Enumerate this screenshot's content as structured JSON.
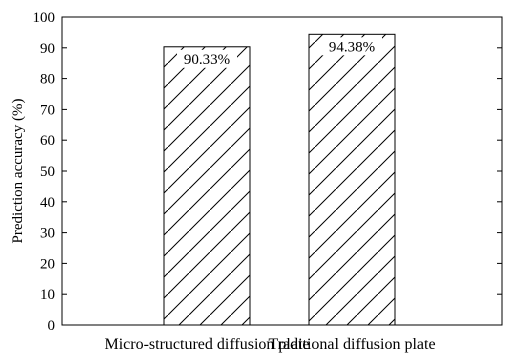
{
  "chart_data": {
    "type": "bar",
    "categories": [
      "Micro-structured diffusion plate",
      "Traditional diffusion plate"
    ],
    "values": [
      90.33,
      94.38
    ],
    "data_labels": [
      "90.33%",
      "94.38%"
    ],
    "ylabel": "Prediction accuracy (%)",
    "ylim": [
      0,
      100
    ],
    "yticks": [
      0,
      10,
      20,
      30,
      40,
      50,
      60,
      70,
      80,
      90,
      100
    ],
    "bar_fill": "hatched",
    "bar_color": "#000000",
    "grid": false,
    "legend": "none"
  }
}
